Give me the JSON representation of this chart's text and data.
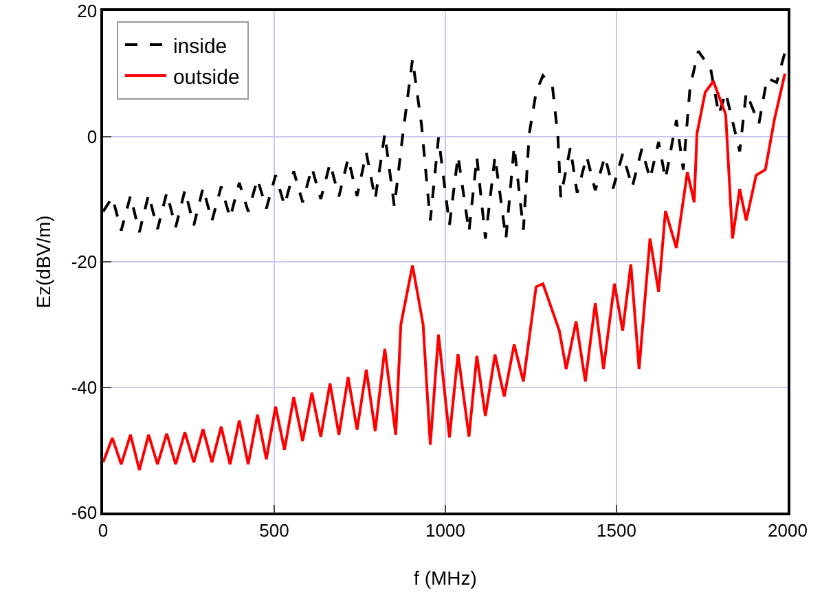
{
  "chart_data": {
    "type": "line",
    "xlabel": "f (MHz)",
    "ylabel": "Ez(dBV/m)",
    "xlim": [
      0,
      2000
    ],
    "xticks": [
      0,
      500,
      1000,
      1500,
      2000
    ],
    "ylim": [
      -60,
      20
    ],
    "yticks": [
      -60,
      -40,
      -20,
      0,
      20
    ],
    "grid": true,
    "legend": "top left",
    "marker": "none",
    "series": [
      {
        "name": "inside",
        "color": "#000000",
        "line_style": "dashed",
        "x": [
          0,
          27,
          53,
          80,
          106,
          133,
          159,
          186,
          212,
          239,
          265,
          292,
          318,
          345,
          371,
          398,
          424,
          451,
          477,
          504,
          530,
          557,
          583,
          610,
          636,
          663,
          689,
          716,
          742,
          769,
          795,
          823,
          851,
          875,
          904,
          930,
          956,
          980,
          1012,
          1037,
          1069,
          1092,
          1117,
          1145,
          1177,
          1201,
          1228,
          1245,
          1265,
          1285,
          1313,
          1329,
          1337,
          1365,
          1385,
          1413,
          1438,
          1466,
          1490,
          1518,
          1546,
          1574,
          1598,
          1623,
          1643,
          1675,
          1695,
          1715,
          1739,
          1775,
          1799,
          1819,
          1860,
          1879,
          1916,
          1940,
          1968,
          1992
        ],
        "values": [
          -12,
          -9.7,
          -15,
          -9.5,
          -15.3,
          -9.3,
          -14.8,
          -9,
          -14.5,
          -8.6,
          -14.2,
          -8.2,
          -13.5,
          -8,
          -13,
          -7.4,
          -12,
          -6.8,
          -11.5,
          -6.2,
          -11,
          -5.6,
          -10.5,
          -5,
          -10,
          -4.3,
          -9.6,
          -3.5,
          -9.5,
          -2.6,
          -10,
          0.4,
          -11.2,
          0,
          12.3,
          2,
          -13.4,
          -0.2,
          -14.1,
          -3.1,
          -15.2,
          -3.3,
          -16.3,
          -3.2,
          -16.3,
          -1.6,
          -14.9,
          0.4,
          7,
          9.7,
          7.9,
          -0.2,
          -9.7,
          -1.8,
          -9,
          -3.2,
          -8.6,
          -3.2,
          -8.3,
          -2.8,
          -8.1,
          -2,
          -6.8,
          -0.9,
          -6.8,
          2.6,
          -5.3,
          7.9,
          13.6,
          10.8,
          3.5,
          7,
          -2.4,
          7,
          2,
          9.3,
          8.6,
          13.4
        ]
      },
      {
        "name": "outside",
        "color": "#ff0000",
        "line_style": "solid",
        "x": [
          0,
          27,
          53,
          80,
          106,
          133,
          159,
          186,
          212,
          239,
          265,
          292,
          318,
          345,
          371,
          398,
          424,
          451,
          477,
          504,
          530,
          557,
          583,
          610,
          636,
          663,
          689,
          716,
          742,
          769,
          795,
          823,
          855,
          870,
          904,
          935,
          956,
          980,
          1012,
          1037,
          1069,
          1092,
          1117,
          1145,
          1172,
          1201,
          1228,
          1265,
          1285,
          1333,
          1353,
          1382,
          1409,
          1438,
          1462,
          1494,
          1518,
          1542,
          1566,
          1598,
          1623,
          1643,
          1675,
          1707,
          1727,
          1735,
          1759,
          1783,
          1819,
          1839,
          1860,
          1879,
          1908,
          1935,
          1961,
          1992
        ],
        "values": [
          -52,
          -48.1,
          -52.3,
          -47.6,
          -53.2,
          -47.6,
          -52.3,
          -47.4,
          -52.3,
          -47.2,
          -52,
          -46.7,
          -52,
          -46.3,
          -52.3,
          -45.3,
          -52.3,
          -44.4,
          -51.5,
          -43.1,
          -50,
          -41.6,
          -48.6,
          -40.9,
          -47.9,
          -39.4,
          -47.6,
          -38.4,
          -46.8,
          -37.2,
          -47,
          -33.9,
          -47.6,
          -30,
          -20.6,
          -30,
          -49.2,
          -31.6,
          -48,
          -34.7,
          -47.9,
          -35,
          -44.6,
          -34.8,
          -41.5,
          -33.2,
          -39.1,
          -24,
          -23.5,
          -31,
          -37.1,
          -29.5,
          -39.1,
          -26.6,
          -37.1,
          -23.5,
          -31,
          -20.4,
          -37.1,
          -16.3,
          -24.8,
          -11.9,
          -17.8,
          -5.7,
          -10.5,
          0.4,
          7,
          8.8,
          3.5,
          -16.3,
          -8.4,
          -13.4,
          -6.2,
          -5.3,
          2.6,
          10
        ]
      }
    ]
  }
}
